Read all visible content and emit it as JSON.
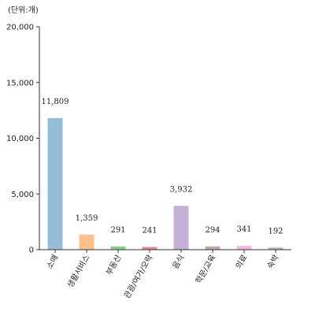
{
  "chart_data": {
    "type": "bar",
    "unit_label": "(단위:개)",
    "categories": [
      "소매",
      "생활서비스",
      "부동산",
      "관광/여가/오락",
      "음식",
      "학문/교육",
      "의료",
      "숙박"
    ],
    "values": [
      11809,
      1359,
      291,
      241,
      3932,
      294,
      341,
      192
    ],
    "value_labels": [
      "11,809",
      "1,359",
      "291",
      "241",
      "3,932",
      "294",
      "341",
      "192"
    ],
    "bar_colors": [
      "#94bdd9",
      "#fdc08c",
      "#8ccf8c",
      "#e08a8a",
      "#c6b0d8",
      "#c4a79e",
      "#f5b8e3",
      "#b3b3b3"
    ],
    "yticks": [
      "0",
      "5,000",
      "10,000",
      "15,000",
      "20,000"
    ],
    "ytick_values": [
      0,
      5000,
      10000,
      15000,
      20000
    ],
    "ylim": [
      0,
      20000
    ],
    "grid": false,
    "legend": "none"
  }
}
